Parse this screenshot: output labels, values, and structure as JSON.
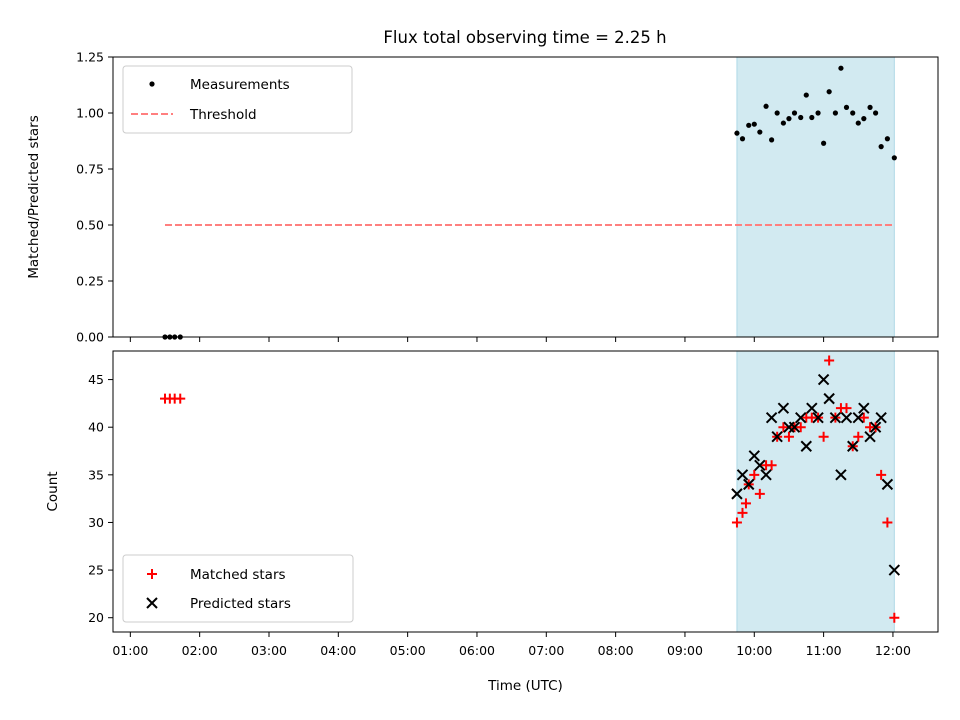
{
  "figure": {
    "title": "Flux total observing time = 2.25 h"
  },
  "colors": {
    "measurements": "#000000",
    "threshold": "#ff7f7f",
    "matched": "#ff0000",
    "predicted": "#000000",
    "span": "#add8e6"
  },
  "chart_data": [
    {
      "type": "scatter",
      "ylabel": "Matched/Predicted stars",
      "xlabel": "",
      "xlim": [
        0.75,
        12.65
      ],
      "ylim": [
        0,
        1.25
      ],
      "yticks": [
        0.0,
        0.25,
        0.5,
        0.75,
        1.0,
        1.25
      ],
      "ytick_labels": [
        "0.00",
        "0.25",
        "0.50",
        "0.75",
        "1.00",
        "1.25"
      ],
      "grid": false,
      "legend": "upper-left",
      "shaded_span": [
        9.75,
        12.02
      ],
      "series": [
        {
          "name": "Measurements",
          "marker": "dot",
          "x": [
            1.5,
            1.57,
            1.64,
            1.72,
            9.75,
            9.83,
            9.92,
            10.0,
            10.08,
            10.17,
            10.25,
            10.33,
            10.42,
            10.5,
            10.58,
            10.67,
            10.75,
            10.83,
            10.92,
            11.0,
            11.08,
            11.17,
            11.25,
            11.33,
            11.42,
            11.5,
            11.58,
            11.67,
            11.75,
            11.83,
            11.92,
            12.02
          ],
          "y": [
            0,
            0,
            0,
            0,
            0.91,
            0.885,
            0.945,
            0.95,
            0.915,
            1.03,
            0.88,
            1.0,
            0.955,
            0.975,
            1.0,
            0.98,
            1.08,
            0.98,
            1.0,
            0.865,
            1.095,
            1.0,
            1.2,
            1.025,
            1.0,
            0.955,
            0.975,
            1.025,
            1.0,
            0.85,
            0.885,
            0.8
          ]
        },
        {
          "name": "Threshold",
          "type": "line",
          "style": "dashed",
          "x": [
            1.5,
            12.02
          ],
          "y": [
            0.5,
            0.5
          ]
        }
      ]
    },
    {
      "type": "scatter",
      "xlabel": "Time (UTC)",
      "ylabel": "Count",
      "xlim": [
        0.75,
        12.65
      ],
      "ylim": [
        18.5,
        48
      ],
      "yticks": [
        20,
        25,
        30,
        35,
        40,
        45
      ],
      "ytick_labels": [
        "20",
        "25",
        "30",
        "35",
        "40",
        "45"
      ],
      "xticks": [
        1,
        2,
        3,
        4,
        5,
        6,
        7,
        8,
        9,
        10,
        11,
        12
      ],
      "xtick_labels": [
        "01:00",
        "02:00",
        "03:00",
        "04:00",
        "05:00",
        "06:00",
        "07:00",
        "08:00",
        "09:00",
        "10:00",
        "11:00",
        "12:00"
      ],
      "grid": false,
      "legend": "lower-left",
      "shaded_span": [
        9.75,
        12.02
      ],
      "series": [
        {
          "name": "Matched stars",
          "marker": "plus",
          "x": [
            1.5,
            1.57,
            1.64,
            1.72,
            9.75,
            9.83,
            9.88,
            9.92,
            10.0,
            10.08,
            10.17,
            10.25,
            10.33,
            10.42,
            10.5,
            10.58,
            10.67,
            10.75,
            10.83,
            10.92,
            11.0,
            11.08,
            11.17,
            11.25,
            11.33,
            11.42,
            11.5,
            11.58,
            11.67,
            11.75,
            11.83,
            11.92,
            12.02
          ],
          "y": [
            43,
            43,
            43,
            43,
            30,
            31,
            32,
            34,
            35,
            33,
            36,
            36,
            39,
            40,
            39,
            40,
            40,
            41,
            41,
            41,
            39,
            47,
            41,
            42,
            42,
            38,
            39,
            41,
            40,
            40,
            35,
            30,
            20
          ]
        },
        {
          "name": "Predicted stars",
          "marker": "x",
          "x": [
            9.75,
            9.83,
            9.92,
            10.0,
            10.08,
            10.17,
            10.25,
            10.33,
            10.42,
            10.5,
            10.58,
            10.67,
            10.75,
            10.83,
            10.92,
            11.0,
            11.08,
            11.17,
            11.25,
            11.33,
            11.42,
            11.5,
            11.58,
            11.67,
            11.75,
            11.83,
            11.92,
            12.02
          ],
          "y": [
            33,
            35,
            34,
            37,
            36,
            35,
            41,
            39,
            42,
            40,
            40,
            41,
            38,
            42,
            41,
            45,
            43,
            41,
            35,
            41,
            38,
            41,
            42,
            39,
            40,
            41,
            34,
            25
          ]
        }
      ]
    }
  ]
}
